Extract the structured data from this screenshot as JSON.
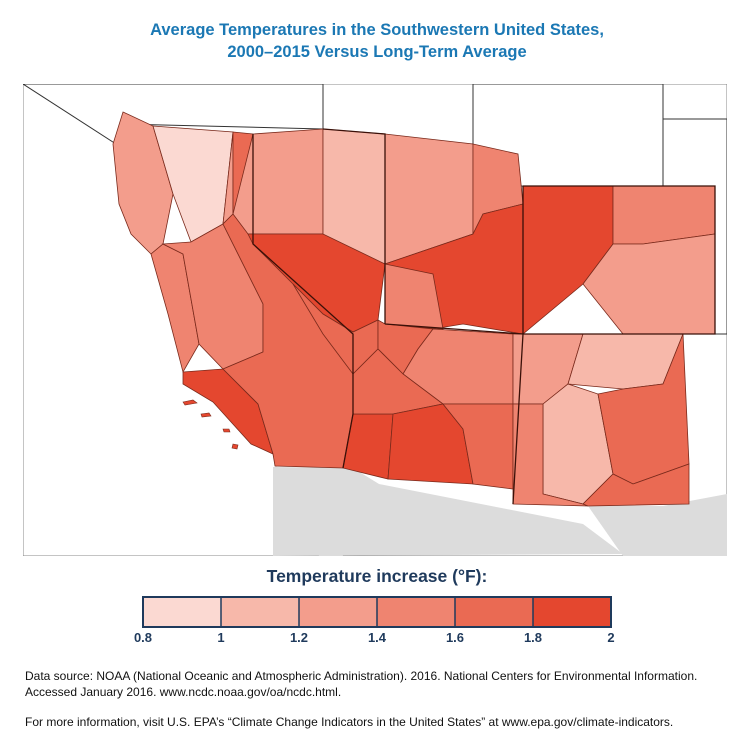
{
  "title": {
    "line1": "Average Temperatures in the Southwestern United States,",
    "line2": "2000–2015 Versus Long-Term Average"
  },
  "legend": {
    "title": "Temperature increase (°F):",
    "ticks": [
      "0.8",
      "1",
      "1.2",
      "1.4",
      "1.6",
      "1.8",
      "2"
    ],
    "bins": [
      {
        "range": [
          0.8,
          1.0
        ],
        "color": "#fbd9d2"
      },
      {
        "range": [
          1.0,
          1.2
        ],
        "color": "#f7b8aa"
      },
      {
        "range": [
          1.2,
          1.4
        ],
        "color": "#f39d8c"
      },
      {
        "range": [
          1.4,
          1.6
        ],
        "color": "#ef8470"
      },
      {
        "range": [
          1.6,
          1.8
        ],
        "color": "#ea6a53"
      },
      {
        "range": [
          1.8,
          2.0
        ],
        "color": "#e4472f"
      }
    ]
  },
  "colors": {
    "outside_us": "#dcdcdc",
    "other_states": "#ffffff",
    "border": "#5a1a10",
    "legend_frame": "#1f3a5c",
    "title": "#1b78b4"
  },
  "footer": {
    "line1": "Data source: NOAA (National Oceanic and Atmospheric Administration). 2016. National Centers for Environmental Information.",
    "line2": "Accessed January 2016. www.ncdc.noaa.gov/oa/ncdc.html.",
    "line3": "For more information, visit U.S. EPA’s “Climate Change Indicators in the United States” at www.epa.gov/climate-indicators."
  }
}
